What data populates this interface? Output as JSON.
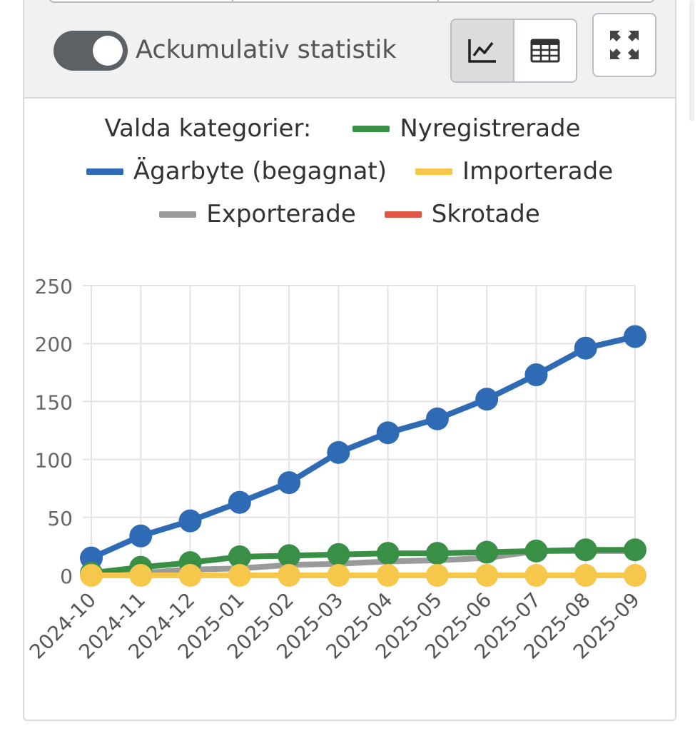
{
  "controls": {
    "toggle_label": "Ackumulativ statistik",
    "toggle_on": true,
    "view_modes": [
      "line-chart-icon",
      "table-icon"
    ],
    "active_view": "line-chart-icon",
    "fullscreen_icon": "expand-arrows-icon"
  },
  "legend": {
    "title": "Valda kategorier:",
    "items": [
      {
        "label": "Nyregistrerade",
        "color": "#3a8f47"
      },
      {
        "label": "Ägarbyte (begagnat)",
        "color": "#2f6ab4"
      },
      {
        "label": "Importerade",
        "color": "#f5c84c"
      },
      {
        "label": "Exporterade",
        "color": "#9a9a9a"
      },
      {
        "label": "Skrotade",
        "color": "#e05546"
      }
    ]
  },
  "chart_data": {
    "type": "line",
    "x": [
      "2024-10",
      "2024-11",
      "2024-12",
      "2025-01",
      "2025-02",
      "2025-03",
      "2025-04",
      "2025-05",
      "2025-06",
      "2025-07",
      "2025-08",
      "2025-09"
    ],
    "ylim": [
      0,
      250
    ],
    "yticks": [
      0,
      50,
      100,
      150,
      200,
      250
    ],
    "grid": true,
    "legend_position": "top",
    "series": [
      {
        "name": "Ägarbyte (begagnat)",
        "color": "#2f6ab4",
        "values": [
          15,
          34,
          47,
          63,
          80,
          106,
          123,
          135,
          152,
          173,
          196,
          206
        ],
        "markers": true
      },
      {
        "name": "Exporterade",
        "color": "#9a9a9a",
        "values": [
          0,
          2,
          5,
          6,
          9,
          10,
          12,
          13,
          15,
          21,
          21,
          21
        ],
        "markers": false
      },
      {
        "name": "Nyregistrerade",
        "color": "#3a8f47",
        "values": [
          2,
          7,
          11,
          16,
          17,
          18,
          19,
          19,
          20,
          21,
          22,
          22
        ],
        "markers": true
      },
      {
        "name": "Importerade",
        "color": "#f5c84c",
        "values": [
          0,
          0,
          0,
          0,
          0,
          0,
          0,
          0,
          0,
          0,
          0,
          0
        ],
        "markers": true
      },
      {
        "name": "Skrotade",
        "color": "#e05546",
        "values": [
          0,
          0,
          0,
          0,
          0,
          0,
          0,
          0,
          0,
          0,
          0,
          0
        ],
        "markers": false
      }
    ]
  }
}
